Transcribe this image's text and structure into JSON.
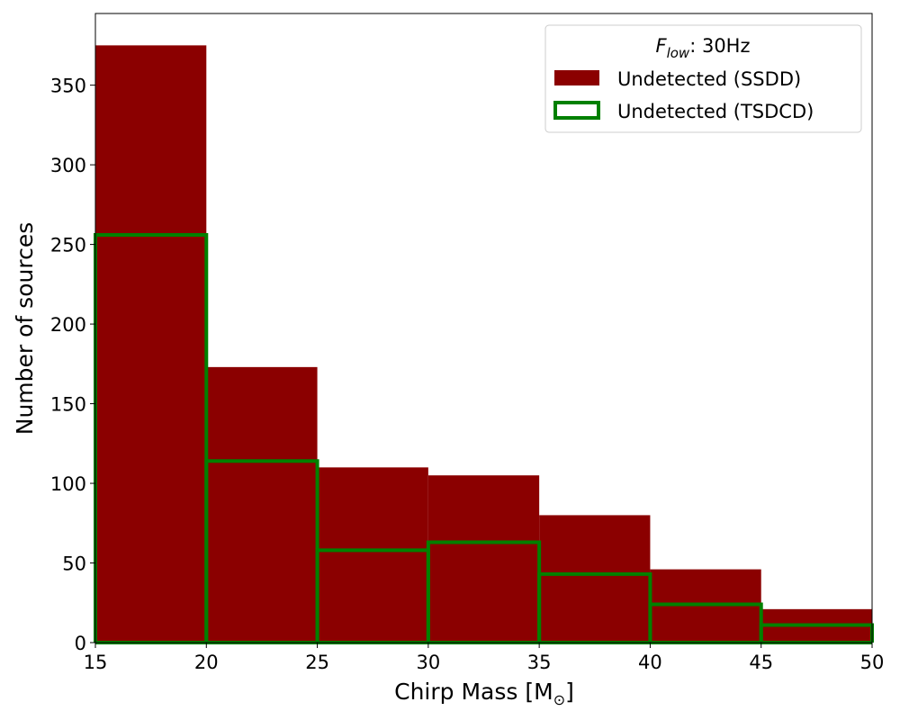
{
  "chart_data": {
    "type": "bar",
    "subtype": "histogram",
    "bin_edges": [
      15,
      20,
      25,
      30,
      35,
      40,
      45,
      50
    ],
    "xlabel": "Chirp Mass [M⊙]",
    "xlabel_main": "Chirp Mass [M",
    "xlabel_sub": "⊙",
    "xlabel_end": "]",
    "ylabel": "Number of sources",
    "xlim": [
      15,
      50
    ],
    "ylim": [
      0,
      395
    ],
    "xticks": [
      15,
      20,
      25,
      30,
      35,
      40,
      45,
      50
    ],
    "yticks": [
      0,
      50,
      100,
      150,
      200,
      250,
      300,
      350
    ],
    "grid": false,
    "legend": {
      "placement": "top-right",
      "title_main": "F",
      "title_sub": "low",
      "title_rest": ": 30Hz"
    },
    "series": [
      {
        "name": "Undetected (SSDD)",
        "style": "filled",
        "color": "#8b0000",
        "values": [
          375,
          173,
          110,
          105,
          80,
          46,
          21
        ]
      },
      {
        "name": "Undetected (TSDCD)",
        "style": "step-outline",
        "color": "#008000",
        "values": [
          256,
          114,
          58,
          63,
          43,
          24,
          11
        ]
      }
    ]
  }
}
